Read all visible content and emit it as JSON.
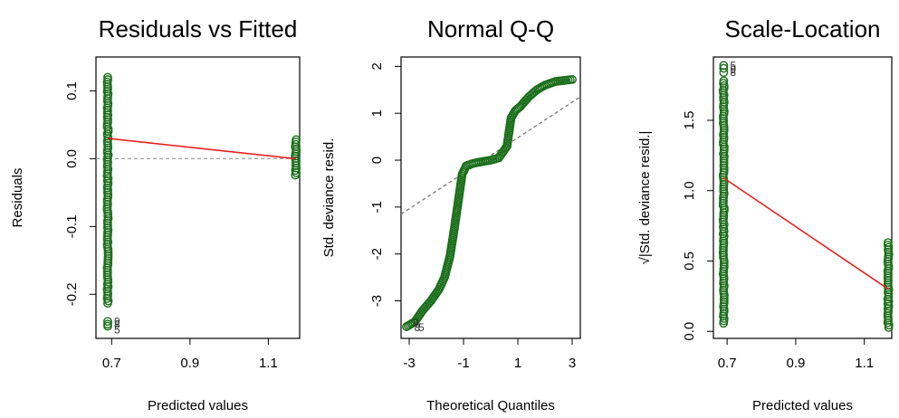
{
  "chart_data": [
    {
      "type": "scatter",
      "title": "Residuals vs Fitted",
      "xlabel": "Predicted values",
      "ylabel": "Residuals",
      "xlim": [
        0.66,
        1.18
      ],
      "ylim": [
        -0.265,
        0.15
      ],
      "xticks": [
        0.7,
        0.9,
        1.1
      ],
      "xtick_labels": [
        "0.7",
        "0.9",
        "1.1"
      ],
      "yticks": [
        -0.2,
        -0.1,
        0.0,
        0.1
      ],
      "ytick_labels": [
        "-0.2",
        "-0.1",
        "0.0",
        "0.1"
      ],
      "point_color": "#1a6e1a",
      "clusters": [
        {
          "x": 0.69,
          "y_min": -0.215,
          "y_max": 0.12,
          "outliers": [
            -0.24,
            -0.244,
            -0.247
          ]
        },
        {
          "x": 1.17,
          "y_min": -0.027,
          "y_max": 0.028,
          "outliers": []
        }
      ],
      "smooth_line": {
        "color": "#e8201e",
        "points": [
          [
            0.69,
            0.03
          ],
          [
            1.17,
            0.0
          ]
        ]
      },
      "reference_line": {
        "color": "#a0a0a0",
        "y": 0.0
      },
      "point_labels": [
        {
          "text": "9",
          "x": 0.69,
          "y": -0.24
        },
        {
          "text": "8",
          "x": 0.69,
          "y": -0.244
        },
        {
          "text": "5",
          "x": 0.69,
          "y": -0.252
        }
      ]
    },
    {
      "type": "scatter",
      "title": "Normal Q-Q",
      "xlabel": "Theoretical Quantiles",
      "ylabel": "Std. deviance resid.",
      "xlim": [
        -3.3,
        3.3
      ],
      "ylim": [
        -3.8,
        2.2
      ],
      "xticks": [
        -3,
        -1,
        1,
        3
      ],
      "xtick_labels": [
        "-3",
        "-1",
        "1",
        "3"
      ],
      "yticks": [
        -3,
        -2,
        -1,
        0,
        1,
        2
      ],
      "ytick_labels": [
        "-3",
        "-2",
        "-1",
        "0",
        "1",
        "2"
      ],
      "point_color": "#1a6e1a",
      "qq_curve": [
        [
          -3.1,
          -3.55
        ],
        [
          -2.8,
          -3.45
        ],
        [
          -2.5,
          -3.2
        ],
        [
          -2.2,
          -3.0
        ],
        [
          -1.9,
          -2.75
        ],
        [
          -1.7,
          -2.5
        ],
        [
          -1.5,
          -2.05
        ],
        [
          -1.35,
          -1.5
        ],
        [
          -1.2,
          -0.9
        ],
        [
          -1.05,
          -0.3
        ],
        [
          -0.9,
          -0.12
        ],
        [
          -0.7,
          -0.08
        ],
        [
          -0.5,
          -0.05
        ],
        [
          0.0,
          0.0
        ],
        [
          0.3,
          0.05
        ],
        [
          0.6,
          0.3
        ],
        [
          0.75,
          0.9
        ],
        [
          0.9,
          1.05
        ],
        [
          1.1,
          1.15
        ],
        [
          1.4,
          1.35
        ],
        [
          1.7,
          1.5
        ],
        [
          2.0,
          1.6
        ],
        [
          2.4,
          1.68
        ],
        [
          3.0,
          1.72
        ]
      ],
      "reference_line": {
        "color": "#7a7a7a",
        "points": [
          [
            -3.3,
            -1.15
          ],
          [
            3.3,
            1.35
          ]
        ]
      },
      "point_labels": [
        {
          "text": "9",
          "x": -3.1,
          "y": -3.47
        },
        {
          "text": "8",
          "x": -3.05,
          "y": -3.57
        },
        {
          "text": "5",
          "x": -2.9,
          "y": -3.57
        }
      ]
    },
    {
      "type": "scatter",
      "title": "Scale-Location",
      "xlabel": "Predicted values",
      "ylabel": "√|Std. deviance resid.|",
      "xlim": [
        0.66,
        1.18
      ],
      "ylim": [
        -0.05,
        1.95
      ],
      "xticks": [
        0.7,
        0.9,
        1.1
      ],
      "xtick_labels": [
        "0.7",
        "0.9",
        "1.1"
      ],
      "yticks": [
        0.0,
        0.5,
        1.0,
        1.5
      ],
      "ytick_labels": [
        "0.0",
        "0.5",
        "1.0",
        "1.5"
      ],
      "point_color": "#1a6e1a",
      "clusters": [
        {
          "x": 0.69,
          "y_min": 0.05,
          "y_max": 1.78,
          "outliers": [
            1.84,
            1.87,
            1.89
          ]
        },
        {
          "x": 1.17,
          "y_min": 0.02,
          "y_max": 0.63,
          "outliers": []
        }
      ],
      "smooth_line": {
        "color": "#e8201e",
        "points": [
          [
            0.69,
            1.09
          ],
          [
            1.17,
            0.3
          ]
        ]
      },
      "point_labels": [
        {
          "text": "5",
          "x": 0.69,
          "y": 1.89
        },
        {
          "text": "9",
          "x": 0.69,
          "y": 1.86
        },
        {
          "text": "8",
          "x": 0.69,
          "y": 1.84
        }
      ]
    }
  ]
}
